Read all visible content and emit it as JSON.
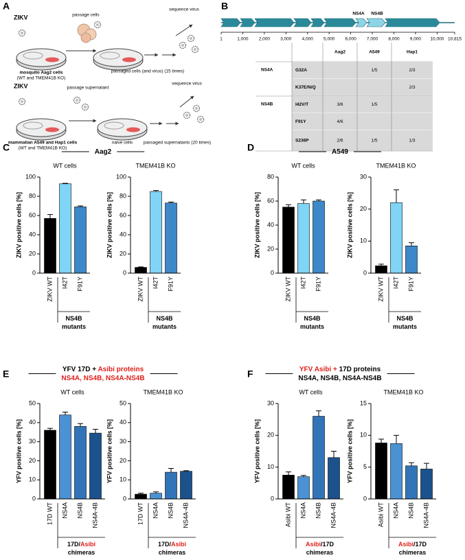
{
  "panel_labels": [
    "A",
    "B",
    "C",
    "D",
    "E",
    "F"
  ],
  "panel_a": {
    "top": {
      "virus": "ZIKV",
      "step1": "passage cells",
      "cells": "mosquito Aag2 cells",
      "cells_note": "(WT and TMEM41B KO)",
      "passaged": "passaged cells (and virus) (15 times)",
      "end": "sequence virus"
    },
    "bottom": {
      "virus": "ZIKV",
      "step1": "passage supernatant",
      "cells": "mammalian A549 and Hap1 cells",
      "cells_note": "(WT and TMEM41B KO)",
      "naive": "naive cells",
      "passaged": "passaged supernatants (20 times)",
      "end": "sequence virus"
    }
  },
  "panel_b": {
    "genome_labels": [
      "NS4A",
      "NS4B"
    ],
    "xlim": [
      1,
      10815
    ],
    "xticks": [
      1,
      {
        "value": 1000,
        "label": "1,000"
      },
      {
        "value": 2000,
        "label": "2,000"
      },
      {
        "value": 3000,
        "label": "3,000"
      },
      {
        "value": 4000,
        "label": "4,000"
      },
      {
        "value": 5000,
        "label": "5,000"
      },
      {
        "value": 6000,
        "label": "6,000"
      },
      {
        "value": 7000,
        "label": "7,000"
      },
      {
        "value": 8000,
        "label": "8,000"
      },
      {
        "value": 9000,
        "label": "9,000"
      },
      {
        "value": 10000,
        "label": "10,000"
      },
      {
        "value": 10815,
        "label": "10,815"
      }
    ],
    "table": {
      "columns": [
        "Aag2",
        "A549",
        "Hap1"
      ],
      "groups": [
        {
          "protein": "NS4A",
          "rows": [
            {
              "mutation": "G32A",
              "cells": [
                null,
                "1/5",
                "2/3"
              ]
            },
            {
              "mutation": "K37E/N/Q",
              "cells": [
                null,
                null,
                "2/3"
              ]
            }
          ]
        },
        {
          "protein": "NS4B",
          "rows": [
            {
              "mutation": "I42V/T",
              "cells": [
                "3/6",
                "1/5",
                null
              ]
            },
            {
              "mutation": "F91Y",
              "cells": [
                "4/6",
                null,
                null
              ]
            },
            {
              "mutation": "S236P",
              "cells": [
                "2/6",
                "1/5",
                "1/3"
              ]
            }
          ]
        }
      ]
    }
  },
  "headers": [
    {
      "lines": [
        [
          {
            "text": "Aag2",
            "color": "#000000"
          }
        ]
      ]
    },
    {
      "lines": [
        [
          {
            "text": "A549",
            "color": "#000000"
          }
        ]
      ]
    },
    {
      "lines": [
        [
          {
            "text": "YFV 17D + ",
            "color": "#000000"
          },
          {
            "text": "Asibi proteins",
            "color": "#e0201c"
          }
        ],
        [
          {
            "text": "NS4A, NS4B, NS4A-NS4B",
            "color": "#e0201c"
          }
        ]
      ]
    },
    {
      "lines": [
        [
          {
            "text": "YFV Asibi + ",
            "color": "#e0201c"
          },
          {
            "text": "17D proteins",
            "color": "#000000"
          }
        ],
        [
          {
            "text": "NS4A, NS4B, NS4A-NS4B",
            "color": "#000000"
          }
        ]
      ]
    }
  ],
  "chart_data": [
    {
      "type": "bar",
      "title": "WT cells",
      "ylabel": "ZIKV positive cells [%]",
      "categories": [
        "ZIKV WT",
        "I42T",
        "F91Y"
      ],
      "values": [
        57,
        93,
        69
      ],
      "errors": [
        4,
        0.5,
        1
      ],
      "colors": [
        "#000000",
        "#80d4f6",
        "#3d88c8"
      ],
      "ylim": [
        0,
        100
      ],
      "yticks": [
        0,
        20,
        40,
        60,
        80,
        100
      ],
      "group_label": [
        [
          {
            "text": "NS4B",
            "color": "#000000"
          }
        ],
        [
          {
            "text": "mutants",
            "color": "#000000"
          }
        ]
      ]
    },
    {
      "type": "bar",
      "title": "TMEM41B KO",
      "ylabel": "ZIKV positive cells [%]",
      "categories": [
        "ZIKV WT",
        "I42T",
        "F91Y"
      ],
      "values": [
        6,
        85,
        73
      ],
      "errors": [
        0.5,
        1,
        1
      ],
      "colors": [
        "#000000",
        "#80d4f6",
        "#3d88c8"
      ],
      "ylim": [
        0,
        100
      ],
      "yticks": [
        0,
        20,
        40,
        60,
        80,
        100
      ],
      "group_label": [
        [
          {
            "text": "NS4B",
            "color": "#000000"
          }
        ],
        [
          {
            "text": "mutants",
            "color": "#000000"
          }
        ]
      ]
    },
    {
      "type": "bar",
      "title": "WT cells",
      "ylabel": "ZIKV positive cells [%]",
      "categories": [
        "ZIKV WT",
        "I42T",
        "F91Y"
      ],
      "values": [
        55,
        58,
        60
      ],
      "errors": [
        2,
        3,
        1
      ],
      "colors": [
        "#000000",
        "#80d4f6",
        "#3d88c8"
      ],
      "ylim": [
        0,
        80
      ],
      "yticks": [
        0,
        20,
        40,
        60,
        80
      ],
      "group_label": [
        [
          {
            "text": "NS4B",
            "color": "#000000"
          }
        ],
        [
          {
            "text": "mutants",
            "color": "#000000"
          }
        ]
      ]
    },
    {
      "type": "bar",
      "title": "TMEM41B KO",
      "ylabel": "ZIKV positive cells [%]",
      "categories": [
        "ZIKV WT",
        "I42T",
        "F91Y"
      ],
      "values": [
        2.3,
        22,
        8.5
      ],
      "errors": [
        0.5,
        4,
        1
      ],
      "colors": [
        "#000000",
        "#80d4f6",
        "#3d88c8"
      ],
      "ylim": [
        0,
        30
      ],
      "yticks": [
        0,
        10,
        20,
        30
      ],
      "group_label": [
        [
          {
            "text": "NS4B",
            "color": "#000000"
          }
        ],
        [
          {
            "text": "mutants",
            "color": "#000000"
          }
        ]
      ]
    },
    {
      "type": "bar",
      "title": "WT cells",
      "ylabel": "YFV positive cells [%]",
      "categories": [
        "17D WT",
        "NS4A",
        "NS4B",
        "NS4A-4B"
      ],
      "values": [
        36,
        44,
        38,
        34.5
      ],
      "errors": [
        1,
        1.5,
        1.5,
        2
      ],
      "colors": [
        "#000000",
        "#4a92d4",
        "#3274b8",
        "#1b528c"
      ],
      "ylim": [
        0,
        50
      ],
      "yticks": [
        0,
        10,
        20,
        30,
        40,
        50
      ],
      "group_label": [
        [
          {
            "text": "17D/",
            "color": "#000000"
          },
          {
            "text": "Asibi",
            "color": "#e0201c"
          }
        ],
        [
          {
            "text": "chimeras",
            "color": "#000000"
          }
        ]
      ]
    },
    {
      "type": "bar",
      "title": "TMEM41B KO",
      "ylabel": "YFV positive cells [%]",
      "categories": [
        "17D WT",
        "NS4A",
        "NS4B",
        "NS4A-4B"
      ],
      "values": [
        2.5,
        3,
        14,
        14.5
      ],
      "errors": [
        0.5,
        0.7,
        2,
        0.3
      ],
      "colors": [
        "#000000",
        "#4a92d4",
        "#3274b8",
        "#1b528c"
      ],
      "ylim": [
        0,
        50
      ],
      "yticks": [
        0,
        10,
        20,
        30,
        40,
        50
      ],
      "group_label": [
        [
          {
            "text": "17D/",
            "color": "#000000"
          },
          {
            "text": "Asibi",
            "color": "#e0201c"
          }
        ],
        [
          {
            "text": "chimeras",
            "color": "#000000"
          }
        ]
      ]
    },
    {
      "type": "bar",
      "title": "WT cells",
      "ylabel": "YFV positive cells [%]",
      "categories": [
        "Asibi WT",
        "NS4A",
        "NS4B",
        "NS4A-4B"
      ],
      "values": [
        7.5,
        7,
        26,
        13
      ],
      "errors": [
        1,
        0.4,
        1.7,
        2
      ],
      "colors": [
        "#000000",
        "#4a92d4",
        "#3274b8",
        "#1b528c"
      ],
      "ylim": [
        0,
        30
      ],
      "yticks": [
        0,
        10,
        20,
        30
      ],
      "group_label": [
        [
          {
            "text": "Asibi",
            "color": "#e0201c"
          },
          {
            "text": "/17D",
            "color": "#000000"
          }
        ],
        [
          {
            "text": "chimeras",
            "color": "#000000"
          }
        ]
      ]
    },
    {
      "type": "bar",
      "title": "TMEM41B KO",
      "ylabel": "YFV positive cells [%]",
      "categories": [
        "Asibi WT",
        "NS4A",
        "NS4B",
        "NS4A-4B"
      ],
      "values": [
        8.8,
        8.7,
        5.2,
        4.7
      ],
      "errors": [
        0.6,
        1.3,
        0.5,
        0.9
      ],
      "colors": [
        "#000000",
        "#4a92d4",
        "#3274b8",
        "#1b528c"
      ],
      "ylim": [
        0,
        15
      ],
      "yticks": [
        0,
        5,
        10,
        15
      ],
      "group_label": [
        [
          {
            "text": "Asibi",
            "color": "#e0201c"
          },
          {
            "text": "/17D",
            "color": "#000000"
          }
        ],
        [
          {
            "text": "chimeras",
            "color": "#000000"
          }
        ]
      ]
    }
  ]
}
